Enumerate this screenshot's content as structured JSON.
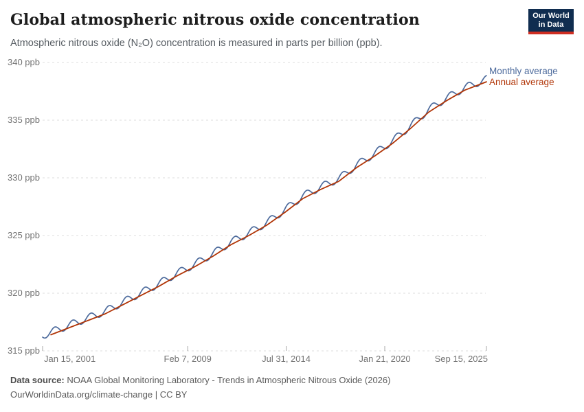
{
  "header": {
    "title": "Global atmospheric nitrous oxide concentration",
    "subtitle": "Atmospheric nitrous oxide (N₂O) concentration is measured in parts per billion (ppb)."
  },
  "logo": {
    "line1": "Our World",
    "line2": "in Data",
    "bg": "#102d50",
    "accent": "#cf2e22"
  },
  "legend": [
    {
      "label": "Monthly average",
      "color": "#4C6A9C"
    },
    {
      "label": "Annual average",
      "color": "#B13507"
    }
  ],
  "y_axis": {
    "ticks": [
      {
        "label": "340 ppb",
        "value": 340
      },
      {
        "label": "335 ppb",
        "value": 335
      },
      {
        "label": "330 ppb",
        "value": 330
      },
      {
        "label": "325 ppb",
        "value": 325
      },
      {
        "label": "320 ppb",
        "value": 320
      },
      {
        "label": "315 ppb",
        "value": 315
      }
    ]
  },
  "x_axis": {
    "ticks": [
      {
        "label": "Jan 15, 2001",
        "t": 2001.038,
        "align": "left"
      },
      {
        "label": "Feb 7, 2009",
        "t": 2009.104,
        "align": "center"
      },
      {
        "label": "Jul 31, 2014",
        "t": 2014.578,
        "align": "center"
      },
      {
        "label": "Jan 21, 2020",
        "t": 2020.055,
        "align": "center"
      },
      {
        "label": "Sep 15, 2025",
        "t": 2025.707,
        "align": "right"
      }
    ]
  },
  "footer": {
    "source_label": "Data source:",
    "source_text": " NOAA Global Monitoring Laboratory - Trends in Atmospheric Nitrous Oxide (2026)",
    "line2": "OurWorldinData.org/climate-change | CC BY"
  },
  "chart_data": {
    "type": "line",
    "title": "Global atmospheric nitrous oxide concentration",
    "ylabel": "ppb",
    "ylim": [
      315,
      340
    ],
    "grid": "horizontal-dashed",
    "legend_position": "right-of-line-ends",
    "x_range": {
      "t_start": 2001.038,
      "t_end": 2025.707,
      "start_label": "Jan 15, 2001",
      "end_label": "Sep 15, 2025"
    },
    "series": [
      {
        "name": "Annual average",
        "color": "#B13507",
        "plotted_at": "mid-year",
        "years": [
          2001,
          2002,
          2003,
          2004,
          2005,
          2006,
          2007,
          2008,
          2009,
          2010,
          2011,
          2012,
          2013,
          2014,
          2015,
          2016,
          2017,
          2018,
          2019,
          2020,
          2021,
          2022,
          2023,
          2024,
          2025
        ],
        "values": [
          316.4,
          317.0,
          317.6,
          318.2,
          319.0,
          319.8,
          320.6,
          321.5,
          322.3,
          323.2,
          324.2,
          325.0,
          325.9,
          327.0,
          328.2,
          329.0,
          329.7,
          330.9,
          331.9,
          333.0,
          334.3,
          335.7,
          336.7,
          337.6,
          338.2
        ]
      },
      {
        "name": "Monthly average",
        "color": "#4C6A9C",
        "derived_from": "Annual average trend plus seasonal cycle",
        "seasonal_model": {
          "offset_ppb": 0.22,
          "amplitude_ppb": 0.32,
          "phase_year_fraction": 0.46,
          "period_years": 1,
          "points_per_year": 36
        },
        "start_ppb": 316.2,
        "end_ppb": 338.9
      }
    ]
  }
}
